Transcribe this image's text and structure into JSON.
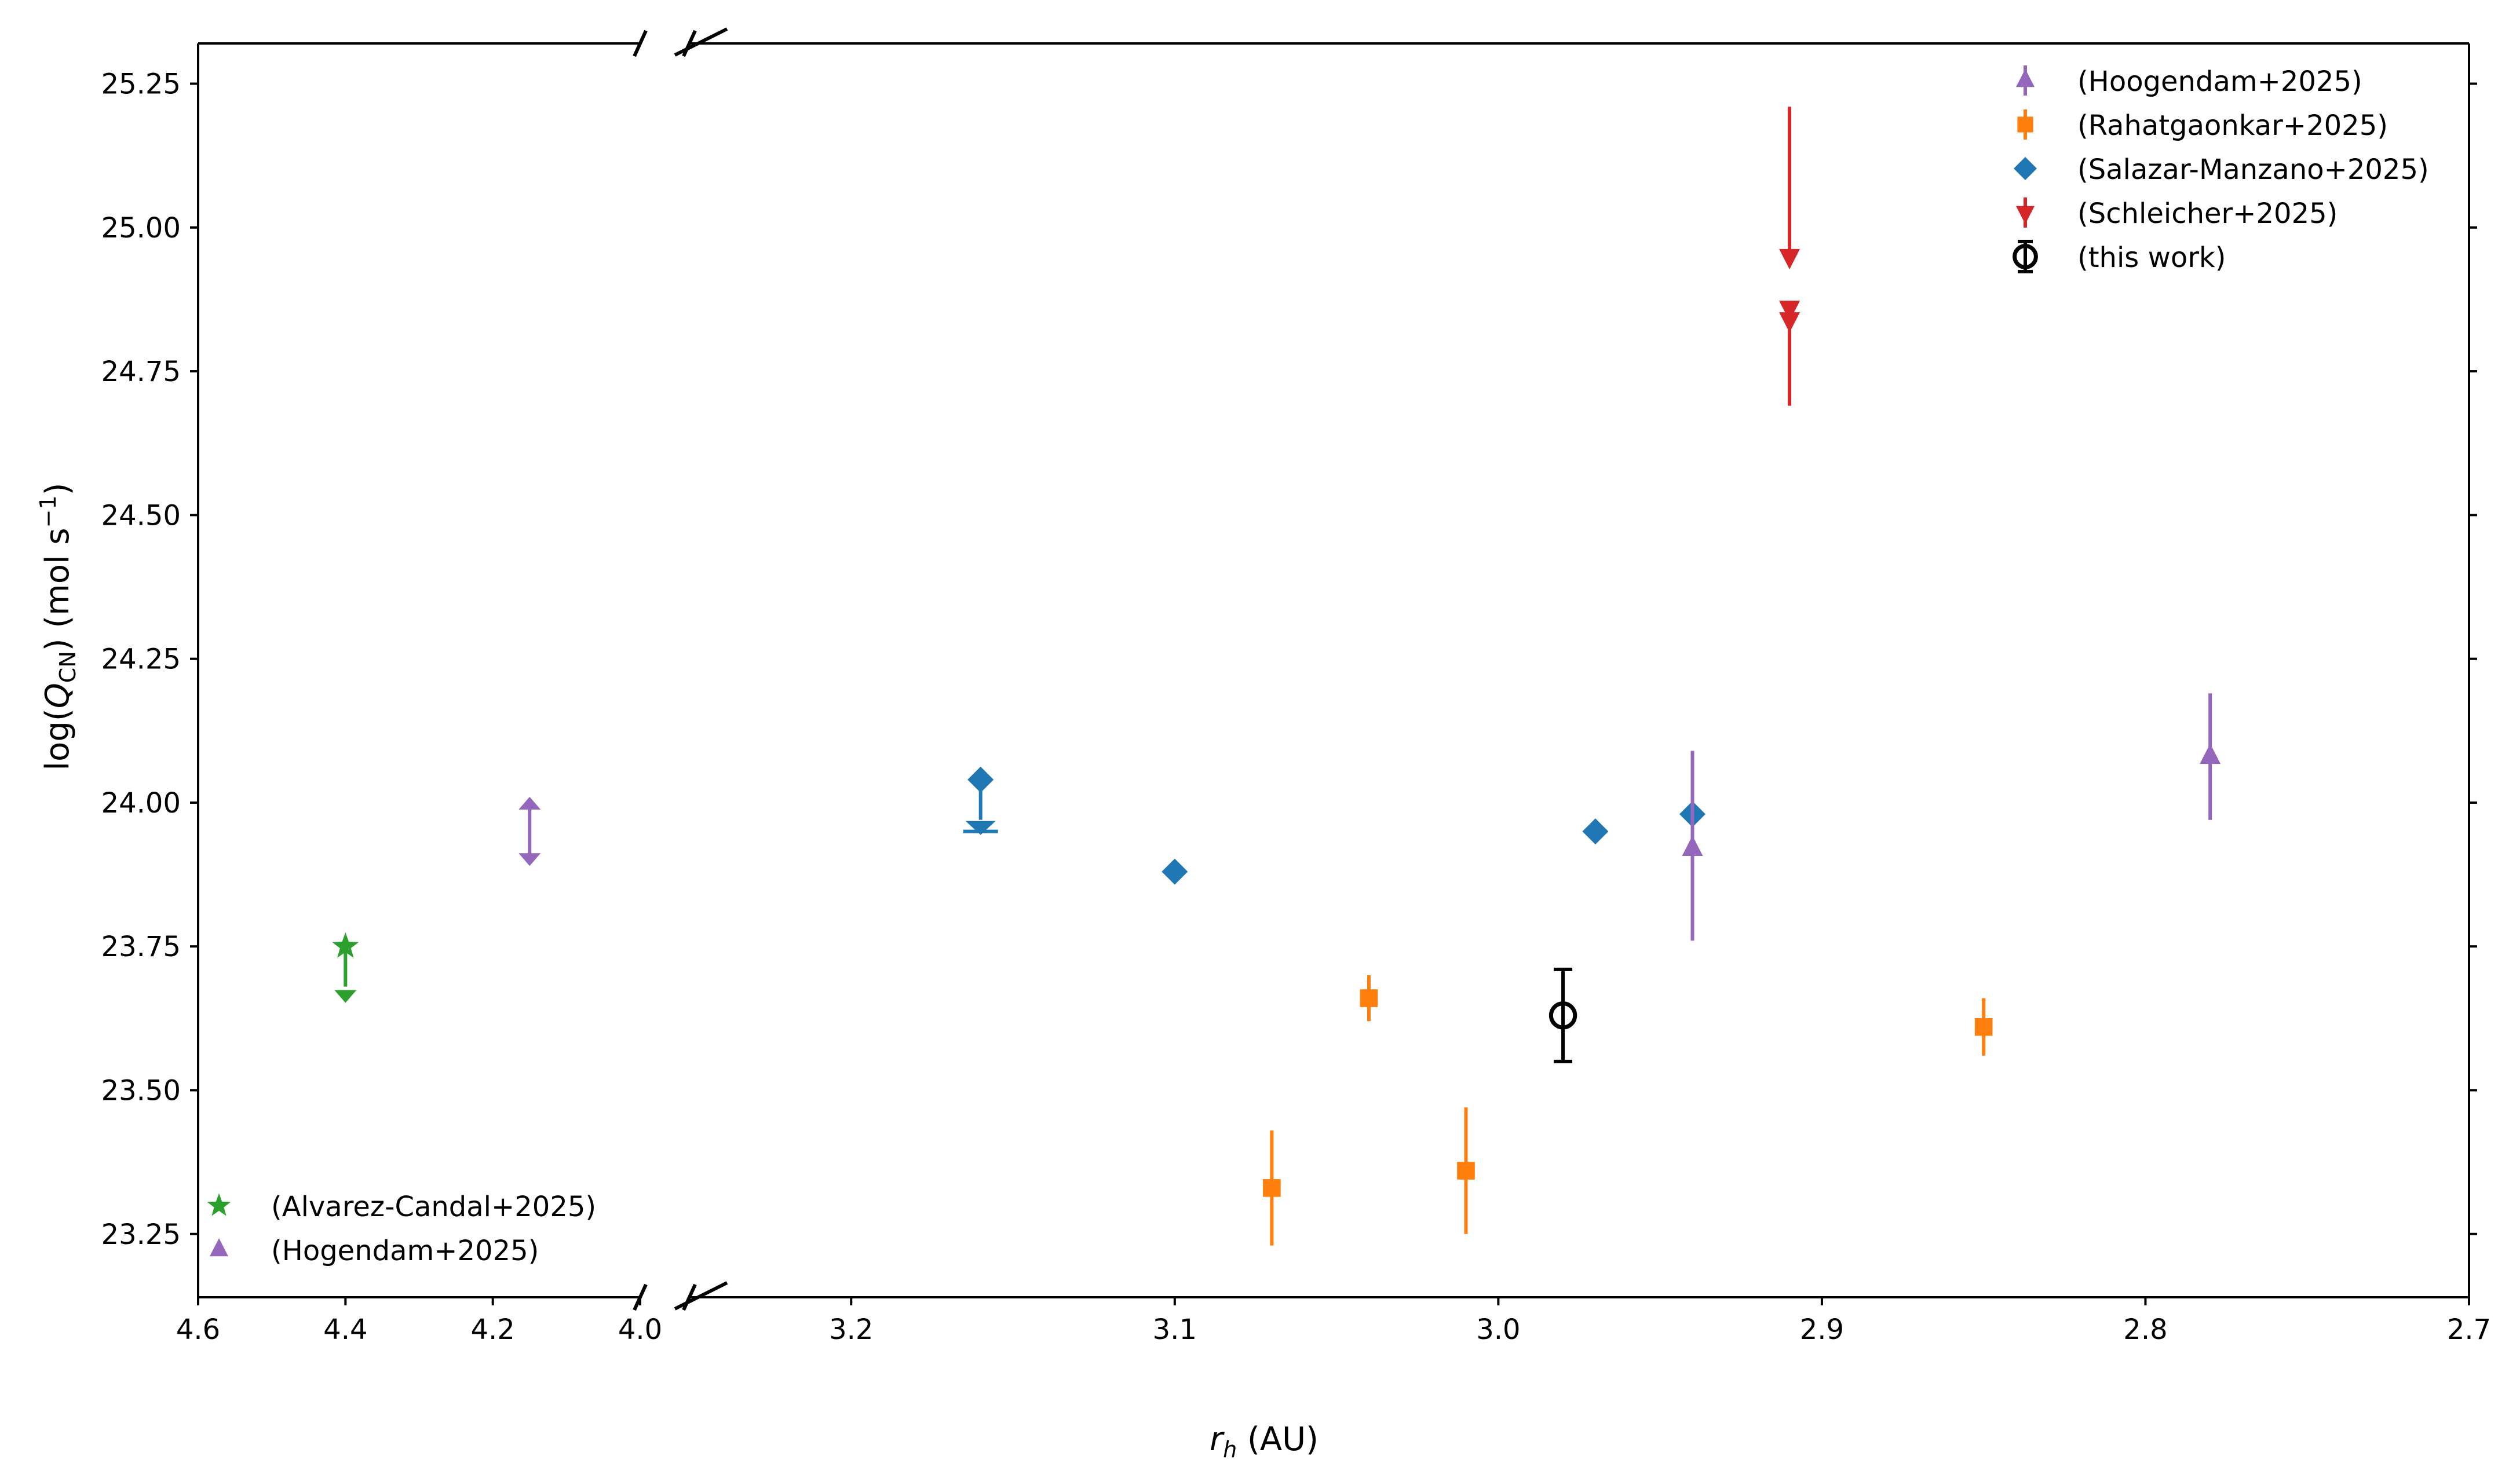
{
  "chart_data": {
    "type": "scatter",
    "title": "",
    "xlabel": "r_h (AU)",
    "xlabel_italic": "r",
    "xlabel_sub": "h",
    "xlabel_rest": " (AU)",
    "ylabel": "log(Q_CN) (mol s^-1)",
    "ylabel_parts": {
      "pre": "log(",
      "italic": "Q",
      "sub": "CN",
      "mid": ") (mol s",
      "sup": "−1",
      "post": ")"
    },
    "broken_x_axis": true,
    "x_axis_direction": "reversed",
    "xlim_left_panel": [
      4.6,
      4.0
    ],
    "xlim_right_panel": [
      3.25,
      2.7
    ],
    "ylim": [
      23.14,
      25.32
    ],
    "xticks_left": [
      "4.6",
      "4.4",
      "4.2",
      "4.0"
    ],
    "xticks_right": [
      "3.2",
      "3.1",
      "3.0",
      "2.9",
      "2.8",
      "2.7"
    ],
    "yticks": [
      "23.25",
      "23.50",
      "23.75",
      "24.00",
      "24.25",
      "24.50",
      "24.75",
      "25.00",
      "25.25"
    ],
    "legend_top_right": [
      {
        "label": "(Hoogendam+2025)",
        "color": "#9467bd",
        "marker": "triangle-up"
      },
      {
        "label": "(Rahatgaonkar+2025)",
        "color": "#ff7f0e",
        "marker": "square"
      },
      {
        "label": "(Salazar-Manzano+2025)",
        "color": "#1f77b4",
        "marker": "diamond"
      },
      {
        "label": "(Schleicher+2025)",
        "color": "#d62728",
        "marker": "triangle-down"
      },
      {
        "label": "(this work)",
        "color": "#000000",
        "marker": "open-circle"
      }
    ],
    "legend_bottom_left": [
      {
        "label": "(Alvarez-Candal+2025)",
        "color": "#2ca02c",
        "marker": "star"
      },
      {
        "label": "(Hogendam+2025)",
        "color": "#9467bd",
        "marker": "triangle-up"
      }
    ],
    "series": [
      {
        "name": "(Alvarez-Candal+2025)",
        "color": "#2ca02c",
        "marker": "star",
        "panel": "left",
        "points": [
          {
            "x": 4.4,
            "y": 23.75,
            "limit": "upper",
            "limit_to": 23.66
          }
        ]
      },
      {
        "name": "(Hogendam+2025)",
        "color": "#9467bd",
        "marker": "triangle-up",
        "panel": "left",
        "points": [
          {
            "x": 4.15,
            "y": 23.95,
            "limit": "range",
            "range": [
              23.9,
              24.0
            ]
          }
        ]
      },
      {
        "name": "(Salazar-Manzano+2025)",
        "color": "#1f77b4",
        "marker": "diamond",
        "panel": "right",
        "points": [
          {
            "x": 3.16,
            "y": 24.04,
            "limit": "upper",
            "limit_to": 23.95
          },
          {
            "x": 3.1,
            "y": 23.88
          },
          {
            "x": 2.97,
            "y": 23.95
          },
          {
            "x": 2.94,
            "y": 23.98
          }
        ]
      },
      {
        "name": "(Rahatgaonkar+2025)",
        "color": "#ff7f0e",
        "marker": "square",
        "panel": "right",
        "points": [
          {
            "x": 3.07,
            "y": 23.33,
            "err_low": 0.1,
            "err_high": 0.1
          },
          {
            "x": 3.04,
            "y": 23.66,
            "err_low": 0.04,
            "err_high": 0.04
          },
          {
            "x": 3.01,
            "y": 23.36,
            "err_low": 0.11,
            "err_high": 0.11
          },
          {
            "x": 2.85,
            "y": 23.61,
            "err_low": 0.05,
            "err_high": 0.05
          }
        ]
      },
      {
        "name": "(Hoogendam+2025)",
        "color": "#9467bd",
        "marker": "triangle-up",
        "panel": "right",
        "points": [
          {
            "x": 2.94,
            "y": 23.92,
            "err_low": 0.16,
            "err_high": 0.17
          },
          {
            "x": 2.78,
            "y": 24.08,
            "err_low": 0.11,
            "err_high": 0.11
          }
        ]
      },
      {
        "name": "(Schleicher+2025)",
        "color": "#d62728",
        "marker": "triangle-down",
        "panel": "right",
        "points": [
          {
            "x": 2.91,
            "y": 24.95,
            "err_low": 0.0,
            "err_high": 0.26
          },
          {
            "x": 2.91,
            "y": 24.86,
            "err_low": 0.0,
            "err_high": 0.0
          },
          {
            "x": 2.91,
            "y": 24.84,
            "err_low": 0.15,
            "err_high": 0.0
          }
        ]
      },
      {
        "name": "(this work)",
        "color": "#000000",
        "marker": "open-circle",
        "panel": "right",
        "points": [
          {
            "x": 2.98,
            "y": 23.63,
            "err_low": 0.08,
            "err_high": 0.08
          }
        ]
      }
    ]
  }
}
